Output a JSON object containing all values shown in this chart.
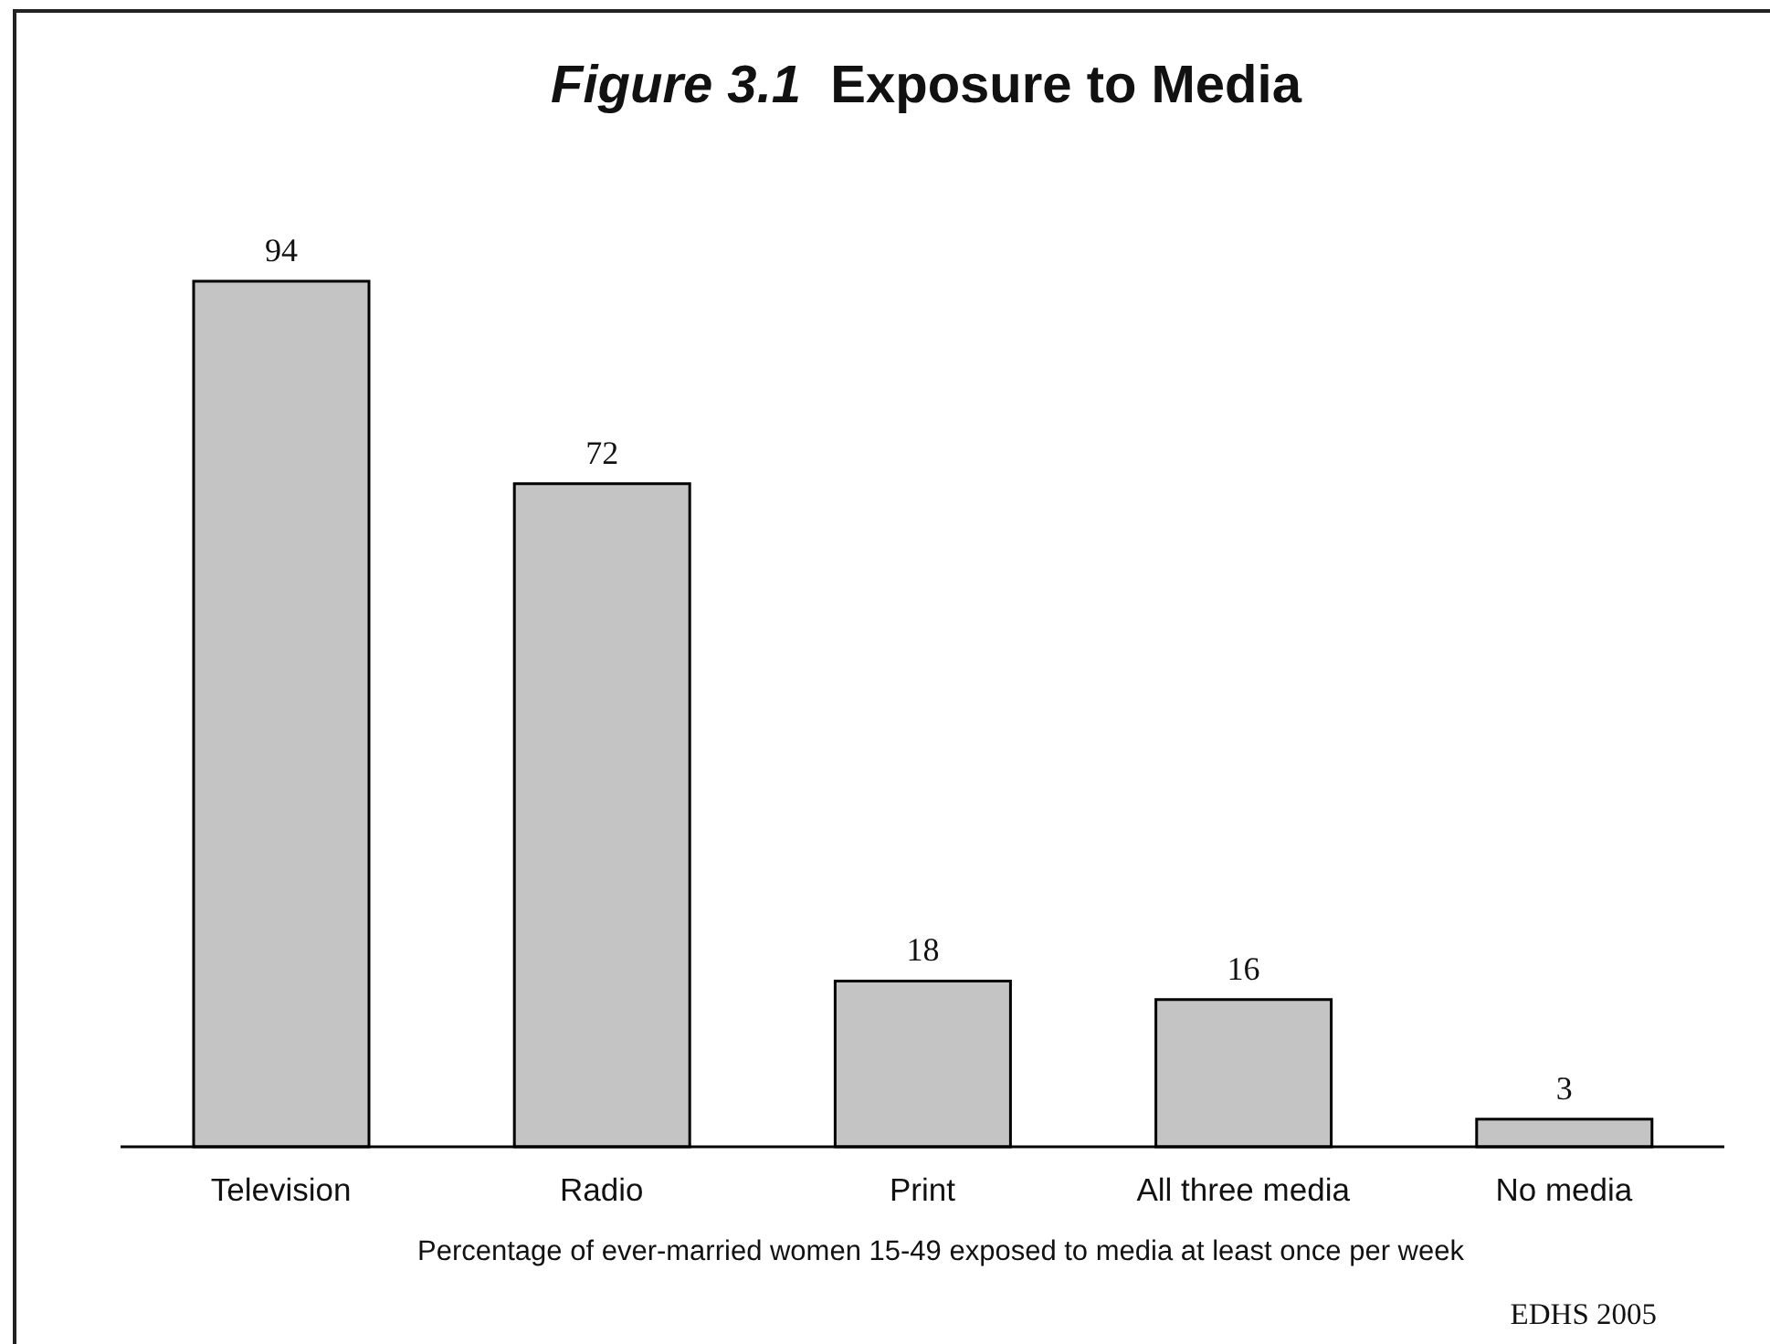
{
  "chart_data": {
    "type": "bar",
    "title": "Figure 3.1 Exposure to Media",
    "categories": [
      "Television",
      "Radio",
      "Print",
      "All three media",
      "No media"
    ],
    "values": [
      94,
      72,
      18,
      16,
      3
    ],
    "color": "#c4c4c4",
    "data_labels": true,
    "xlabel": "Percentage of ever-married women 15-49 exposed to media at least once per week",
    "annotations": [
      "EDHS 2005"
    ]
  }
}
